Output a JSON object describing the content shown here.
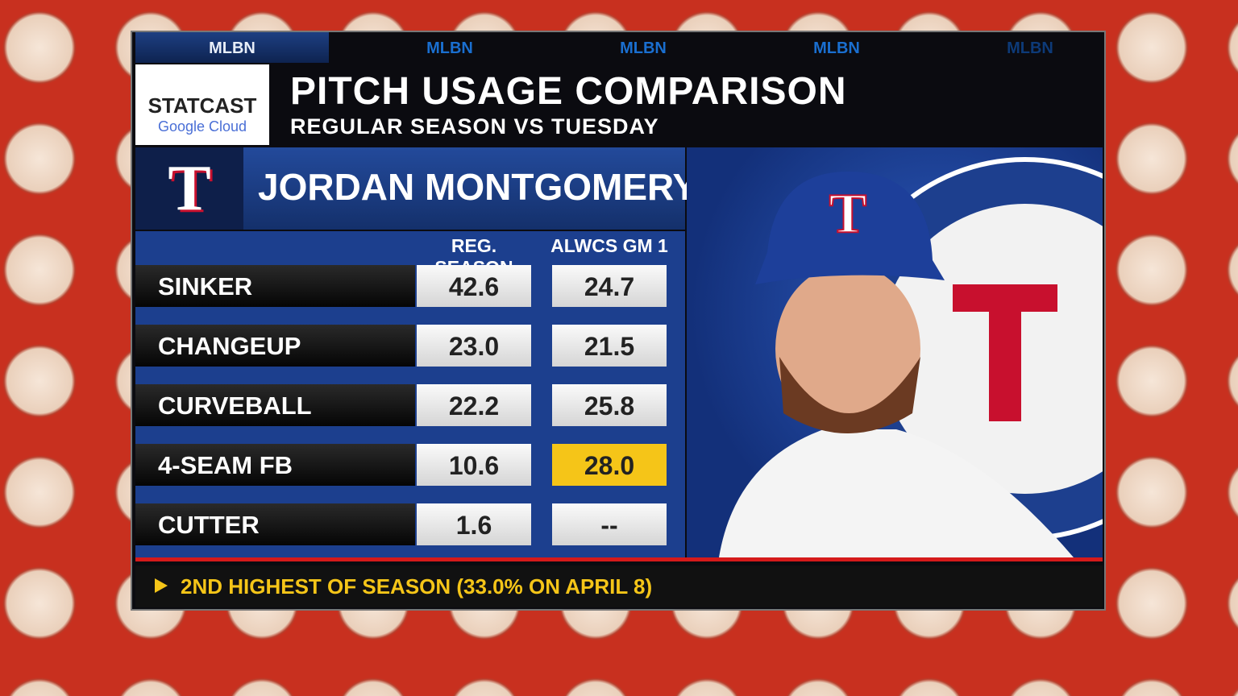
{
  "header": {
    "tabs": [
      "MLBN",
      "MLBN",
      "MLBN",
      "MLBN",
      "MLBN"
    ],
    "logo": {
      "title": "STATCAST",
      "sponsor": "Google Cloud"
    },
    "title": "PITCH USAGE COMPARISON",
    "subtitle": "REGULAR SEASON VS TUESDAY"
  },
  "player": {
    "team_logo": "T",
    "name": "JORDAN MONTGOMERY"
  },
  "table": {
    "columns": [
      "REG. SEASON",
      "ALWCS GM 1"
    ],
    "rows": [
      [
        "SINKER",
        "42.6",
        "24.7"
      ],
      [
        "CHANGEUP",
        "23.0",
        "21.5"
      ],
      [
        "CURVEBALL",
        "22.2",
        "25.8"
      ],
      [
        "4-SEAM FB",
        "10.6",
        "28.0"
      ],
      [
        "CUTTER",
        "1.6",
        "--"
      ]
    ]
  },
  "footnote": "2ND HIGHEST OF SEASON (33.0% ON APRIL 8)"
}
